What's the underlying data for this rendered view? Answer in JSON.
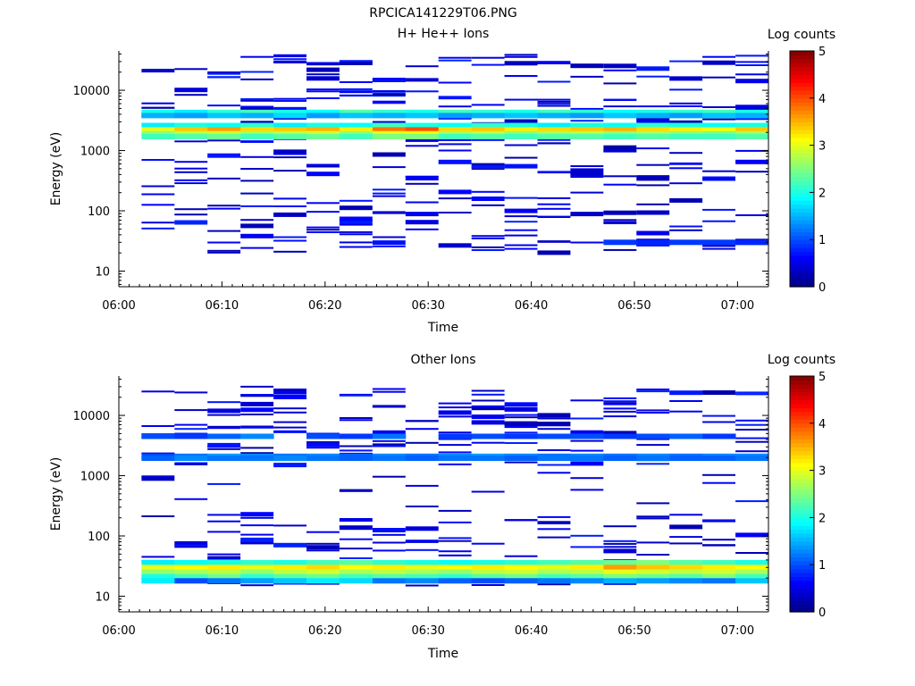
{
  "figure_title": "RPCICA141229T06.PNG",
  "colormap": [
    "#00007f",
    "#0000ff",
    "#007fff",
    "#00ffff",
    "#7fff7f",
    "#ffff00",
    "#ff7f00",
    "#ff0000",
    "#7f0000"
  ],
  "chart_data": [
    {
      "type": "heatmap",
      "title": "H+ He++ Ions",
      "xlabel": "Time",
      "ylabel": "Energy (eV)",
      "y_scale": "log",
      "x_ticks": [
        "06:00",
        "06:10",
        "06:20",
        "06:30",
        "06:40",
        "06:50",
        "07:00"
      ],
      "y_ticks": [
        "10",
        "100",
        "1000",
        "10000"
      ],
      "colorbar": {
        "label": "Log counts",
        "ticks": [
          "0",
          "1",
          "2",
          "3",
          "4",
          "5"
        ],
        "range": [
          0,
          5
        ]
      },
      "time_bins_min": [
        2.2,
        5.4,
        8.6,
        11.8,
        15.0,
        18.2,
        21.4,
        24.6,
        27.8,
        31.0,
        34.2,
        37.4,
        40.6,
        43.8,
        47.0,
        50.2,
        53.4,
        56.6,
        59.8
      ],
      "bands": [
        {
          "energy_eV": 4300,
          "values": [
            2.0,
            1.8,
            2.1,
            2.2,
            2.0,
            1.9,
            2.3,
            2.1,
            2.0,
            2.2,
            2.1,
            2.0,
            2.2,
            2.1,
            1.9,
            2.0,
            2.1,
            2.2,
            2.0
          ]
        },
        {
          "energy_eV": 3800,
          "values": [
            1.5,
            1.4,
            1.6,
            1.5,
            1.7,
            1.4,
            1.6,
            1.5,
            1.6,
            1.4,
            1.5,
            1.6,
            1.5,
            1.4,
            1.6,
            1.5,
            1.4,
            1.6,
            1.5
          ]
        },
        {
          "energy_eV": 2600,
          "values": [
            1.8,
            2.0,
            1.9,
            2.1,
            1.8,
            2.0,
            1.9,
            2.2,
            2.0,
            1.9,
            2.1,
            2.0,
            1.8,
            2.0,
            1.9,
            2.1,
            2.0,
            1.9,
            2.0
          ]
        },
        {
          "energy_eV": 2200,
          "values": [
            3.0,
            3.4,
            3.6,
            3.3,
            3.4,
            3.5,
            3.2,
            3.8,
            4.0,
            3.3,
            3.4,
            3.2,
            3.3,
            3.4,
            3.5,
            3.3,
            3.2,
            3.1,
            3.4
          ]
        },
        {
          "energy_eV": 1900,
          "values": [
            2.6,
            2.8,
            2.9,
            2.7,
            2.8,
            2.9,
            2.6,
            3.0,
            3.1,
            2.7,
            2.8,
            2.6,
            2.7,
            2.8,
            2.6,
            2.7,
            2.6,
            2.5,
            2.7
          ]
        },
        {
          "energy_eV": 1700,
          "values": [
            2.2,
            2.3,
            2.4,
            2.2,
            2.3,
            2.4,
            2.2,
            2.5,
            2.5,
            2.2,
            2.3,
            2.2,
            2.3,
            2.3,
            2.2,
            2.3,
            2.2,
            2.2,
            2.3
          ]
        },
        {
          "energy_eV": 30,
          "values": [
            null,
            null,
            null,
            null,
            null,
            null,
            null,
            null,
            null,
            null,
            null,
            null,
            null,
            null,
            0.9,
            0.8,
            0.9,
            0.9,
            0.8
          ]
        }
      ],
      "sparse_range_eV": [
        20,
        40000
      ]
    },
    {
      "type": "heatmap",
      "title": "Other Ions",
      "xlabel": "Time",
      "ylabel": "Energy (eV)",
      "y_scale": "log",
      "x_ticks": [
        "06:00",
        "06:10",
        "06:20",
        "06:30",
        "06:40",
        "06:50",
        "07:00"
      ],
      "y_ticks": [
        "10",
        "100",
        "1000",
        "10000"
      ],
      "colorbar": {
        "label": "Log counts",
        "ticks": [
          "0",
          "1",
          "2",
          "3",
          "4",
          "5"
        ],
        "range": [
          0,
          5
        ]
      },
      "time_bins_min": [
        2.2,
        5.4,
        8.6,
        11.8,
        15.0,
        18.2,
        21.4,
        24.6,
        27.8,
        31.0,
        34.2,
        37.4,
        40.6,
        43.8,
        47.0,
        50.2,
        53.4,
        56.6,
        59.8
      ],
      "bands": [
        {
          "energy_eV": 4500,
          "values": [
            1.0,
            0.9,
            1.1,
            1.3,
            null,
            1.0,
            0.9,
            1.2,
            null,
            0.9,
            1.0,
            0.9,
            1.0,
            1.0,
            0.9,
            1.0,
            1.1,
            0.9,
            null
          ]
        },
        {
          "energy_eV": 2100,
          "values": [
            1.0,
            1.2,
            1.4,
            1.3,
            1.2,
            1.3,
            1.1,
            1.3,
            1.2,
            1.3,
            1.4,
            1.3,
            1.2,
            1.3,
            1.2,
            1.3,
            1.2,
            1.3,
            1.3
          ]
        },
        {
          "energy_eV": 1950,
          "values": [
            1.1,
            1.3,
            1.2,
            1.2,
            1.3,
            1.2,
            1.1,
            1.2,
            1.1,
            1.2,
            1.2,
            1.1,
            1.2,
            1.2,
            1.1,
            1.2,
            1.1,
            1.1,
            1.2
          ]
        },
        {
          "energy_eV": 36,
          "values": [
            1.8,
            1.9,
            2.0,
            2.1,
            2.0,
            2.2,
            2.3,
            2.1,
            2.0,
            1.9,
            2.0,
            2.1,
            2.2,
            2.3,
            2.4,
            2.5,
            2.3,
            2.2,
            2.0
          ]
        },
        {
          "energy_eV": 30,
          "values": [
            3.0,
            3.1,
            3.2,
            3.0,
            3.2,
            3.3,
            3.1,
            3.2,
            3.0,
            3.1,
            3.2,
            3.1,
            3.0,
            3.2,
            3.6,
            3.4,
            3.3,
            3.2,
            3.1
          ]
        },
        {
          "energy_eV": 25,
          "values": [
            2.6,
            2.7,
            2.8,
            2.6,
            2.8,
            2.9,
            2.7,
            2.8,
            2.7,
            2.6,
            2.8,
            2.9,
            2.7,
            2.8,
            3.0,
            2.9,
            2.8,
            2.9,
            2.7
          ]
        },
        {
          "energy_eV": 21,
          "values": [
            2.0,
            2.2,
            2.4,
            2.1,
            2.3,
            2.4,
            2.2,
            2.3,
            2.2,
            2.1,
            2.3,
            2.4,
            2.2,
            2.3,
            2.5,
            2.4,
            2.3,
            2.5,
            2.2
          ]
        },
        {
          "energy_eV": 18,
          "values": [
            1.8,
            1.0,
            1.2,
            1.4,
            1.6,
            1.8,
            1.7,
            1.2,
            1.3,
            1.1,
            1.0,
            1.1,
            1.2,
            1.3,
            1.5,
            1.4,
            1.3,
            1.2,
            1.6
          ]
        }
      ],
      "sparse_range_eV": [
        15,
        30000
      ]
    }
  ]
}
